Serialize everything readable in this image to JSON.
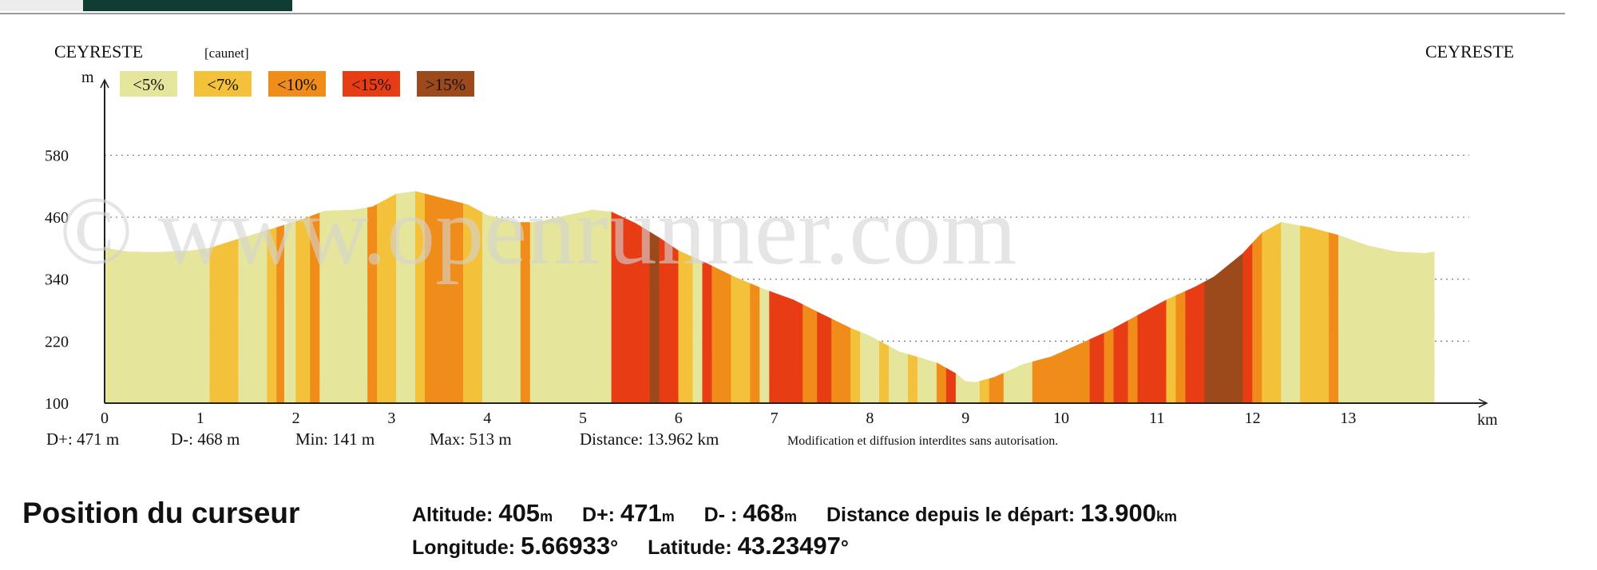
{
  "chart_data": {
    "type": "area",
    "start_label": "CEYRESTE",
    "end_label": "CEYRESTE",
    "waypoint_label": "[caunet]",
    "y_unit": "m",
    "x_unit": "km",
    "ylim": [
      100,
      640
    ],
    "xlim": [
      0,
      14.5
    ],
    "y_ticks": [
      100,
      220,
      340,
      460,
      580
    ],
    "x_ticks": [
      0,
      1,
      2,
      3,
      4,
      5,
      6,
      7,
      8,
      9,
      10,
      11,
      12,
      13
    ],
    "grid": true,
    "legend_position": "top-left",
    "legend": [
      {
        "label": "<5%",
        "color": "#e5e59b"
      },
      {
        "label": "<7%",
        "color": "#f3c13a"
      },
      {
        "label": "<10%",
        "color": "#f08c1a"
      },
      {
        "label": "<15%",
        "color": "#e83d14"
      },
      {
        "label": ">15%",
        "color": "#9c4a1c"
      }
    ],
    "profile": {
      "x": [
        0,
        0.25,
        0.55,
        0.9,
        1.1,
        1.4,
        1.8,
        2.1,
        2.3,
        2.6,
        2.8,
        3.05,
        3.25,
        3.5,
        3.8,
        4.0,
        4.3,
        4.5,
        4.8,
        5.1,
        5.3,
        5.55,
        5.8,
        6.0,
        6.3,
        6.6,
        6.9,
        7.2,
        7.5,
        7.8,
        8.0,
        8.3,
        8.7,
        8.9,
        9.0,
        9.1,
        9.3,
        9.6,
        9.9,
        10.2,
        10.5,
        10.8,
        11.1,
        11.4,
        11.6,
        11.9,
        12.1,
        12.3,
        12.6,
        12.9,
        13.2,
        13.5,
        13.8,
        13.9
      ],
      "y": [
        400,
        393,
        392,
        395,
        400,
        418,
        440,
        458,
        472,
        474,
        480,
        505,
        510,
        498,
        484,
        464,
        450,
        450,
        462,
        474,
        470,
        448,
        420,
        395,
        370,
        343,
        320,
        300,
        272,
        245,
        230,
        200,
        178,
        157,
        142,
        140,
        150,
        175,
        190,
        215,
        240,
        270,
        300,
        325,
        345,
        390,
        430,
        450,
        440,
        425,
        405,
        393,
        390,
        393
      ]
    },
    "gradient_bands": [
      {
        "from": 0,
        "to": 1.1,
        "class": "<5%"
      },
      {
        "from": 1.1,
        "to": 1.4,
        "class": "<7%"
      },
      {
        "from": 1.4,
        "to": 1.7,
        "class": "<5%"
      },
      {
        "from": 1.7,
        "to": 1.8,
        "class": "<7%"
      },
      {
        "from": 1.8,
        "to": 1.88,
        "class": "<10%"
      },
      {
        "from": 1.88,
        "to": 2.0,
        "class": "<5%"
      },
      {
        "from": 2.0,
        "to": 2.15,
        "class": "<7%"
      },
      {
        "from": 2.15,
        "to": 2.25,
        "class": "<10%"
      },
      {
        "from": 2.25,
        "to": 2.75,
        "class": "<5%"
      },
      {
        "from": 2.75,
        "to": 2.85,
        "class": "<10%"
      },
      {
        "from": 2.85,
        "to": 3.05,
        "class": "<7%"
      },
      {
        "from": 3.05,
        "to": 3.25,
        "class": "<5%"
      },
      {
        "from": 3.25,
        "to": 3.35,
        "class": "<7%"
      },
      {
        "from": 3.35,
        "to": 3.75,
        "class": "<10%"
      },
      {
        "from": 3.75,
        "to": 3.95,
        "class": "<7%"
      },
      {
        "from": 3.95,
        "to": 4.35,
        "class": "<5%"
      },
      {
        "from": 4.35,
        "to": 4.45,
        "class": "<10%"
      },
      {
        "from": 4.45,
        "to": 5.3,
        "class": "<5%"
      },
      {
        "from": 5.3,
        "to": 5.7,
        "class": "<15%"
      },
      {
        "from": 5.7,
        "to": 5.8,
        "class": ">15%"
      },
      {
        "from": 5.8,
        "to": 6.0,
        "class": "<15%"
      },
      {
        "from": 6.0,
        "to": 6.15,
        "class": "<7%"
      },
      {
        "from": 6.15,
        "to": 6.25,
        "class": "<5%"
      },
      {
        "from": 6.25,
        "to": 6.35,
        "class": "<15%"
      },
      {
        "from": 6.35,
        "to": 6.55,
        "class": "<10%"
      },
      {
        "from": 6.55,
        "to": 6.75,
        "class": "<7%"
      },
      {
        "from": 6.75,
        "to": 6.85,
        "class": "<10%"
      },
      {
        "from": 6.85,
        "to": 6.95,
        "class": "<5%"
      },
      {
        "from": 6.95,
        "to": 7.3,
        "class": "<15%"
      },
      {
        "from": 7.3,
        "to": 7.45,
        "class": "<10%"
      },
      {
        "from": 7.45,
        "to": 7.6,
        "class": "<15%"
      },
      {
        "from": 7.6,
        "to": 7.8,
        "class": "<10%"
      },
      {
        "from": 7.8,
        "to": 7.9,
        "class": "<7%"
      },
      {
        "from": 7.9,
        "to": 8.1,
        "class": "<5%"
      },
      {
        "from": 8.1,
        "to": 8.2,
        "class": "<7%"
      },
      {
        "from": 8.2,
        "to": 8.4,
        "class": "<5%"
      },
      {
        "from": 8.4,
        "to": 8.5,
        "class": "<7%"
      },
      {
        "from": 8.5,
        "to": 8.7,
        "class": "<5%"
      },
      {
        "from": 8.7,
        "to": 8.8,
        "class": "<10%"
      },
      {
        "from": 8.8,
        "to": 8.9,
        "class": "<15%"
      },
      {
        "from": 8.9,
        "to": 9.15,
        "class": "<5%"
      },
      {
        "from": 9.15,
        "to": 9.25,
        "class": "<7%"
      },
      {
        "from": 9.25,
        "to": 9.4,
        "class": "<10%"
      },
      {
        "from": 9.4,
        "to": 9.7,
        "class": "<5%"
      },
      {
        "from": 9.7,
        "to": 10.3,
        "class": "<10%"
      },
      {
        "from": 10.3,
        "to": 10.45,
        "class": "<15%"
      },
      {
        "from": 10.45,
        "to": 10.55,
        "class": "<10%"
      },
      {
        "from": 10.55,
        "to": 10.7,
        "class": "<15%"
      },
      {
        "from": 10.7,
        "to": 10.8,
        "class": "<10%"
      },
      {
        "from": 10.8,
        "to": 11.1,
        "class": "<15%"
      },
      {
        "from": 11.1,
        "to": 11.2,
        "class": "<7%"
      },
      {
        "from": 11.2,
        "to": 11.3,
        "class": "<10%"
      },
      {
        "from": 11.3,
        "to": 11.5,
        "class": "<15%"
      },
      {
        "from": 11.5,
        "to": 11.9,
        "class": ">15%"
      },
      {
        "from": 11.9,
        "to": 12.0,
        "class": "<15%"
      },
      {
        "from": 12.0,
        "to": 12.1,
        "class": "<10%"
      },
      {
        "from": 12.1,
        "to": 12.3,
        "class": "<7%"
      },
      {
        "from": 12.3,
        "to": 12.5,
        "class": "<5%"
      },
      {
        "from": 12.5,
        "to": 12.8,
        "class": "<7%"
      },
      {
        "from": 12.8,
        "to": 12.9,
        "class": "<10%"
      },
      {
        "from": 12.9,
        "to": 13.9,
        "class": "<5%"
      }
    ]
  },
  "stats": {
    "d_plus": "D+: 471 m",
    "d_minus": "D-: 468 m",
    "min": "Min: 141 m",
    "max": "Max: 513 m",
    "distance": "Distance: 13.962 km",
    "notice": "Modification et diffusion interdites sans autorisation."
  },
  "watermark": "© www.openrunner.com",
  "cursor_panel": {
    "title": "Position du curseur",
    "altitude_label": "Altitude:",
    "altitude_value": "405",
    "altitude_unit": "m",
    "dplus_label": "D+:",
    "dplus_value": "471",
    "dplus_unit": "m",
    "dminus_label": "D- :",
    "dminus_value": "468",
    "dminus_unit": "m",
    "distance_label": "Distance depuis le départ:",
    "distance_value": "13.900",
    "distance_unit": "km",
    "longitude_label": "Longitude:",
    "longitude_value": "5.66933",
    "longitude_unit": "°",
    "latitude_label": "Latitude:",
    "latitude_value": "43.23497",
    "latitude_unit": "°"
  }
}
